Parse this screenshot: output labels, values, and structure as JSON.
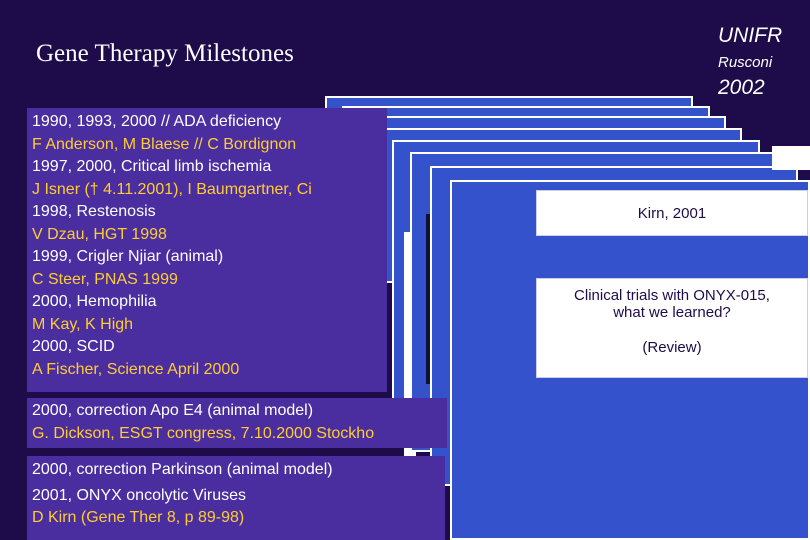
{
  "slide": {
    "title": "Gene Therapy Milestones",
    "institution": "UNIFR",
    "author": "Rusconi",
    "year": "2002"
  },
  "milestones": [
    {
      "line1": "1990, 1993, 2000 // ADA deficiency",
      "line2": "F Anderson, M Blaese // C Bordignon"
    },
    {
      "line1": "1997, 2000, Critical limb ischemia",
      "line2": "J Isner († 4.11.2001), I Baumgartner, Ci"
    },
    {
      "line1": "1998, Restenosis",
      "line2": "V Dzau, HGT 1998"
    },
    {
      "line1": "1999, Crigler Njiar (animal)",
      "line2": "C Steer, PNAS 1999"
    },
    {
      "line1": "2000, Hemophilia",
      "line2": "M Kay, K High"
    },
    {
      "line1": "2000, SCID",
      "line2": "A Fischer, Science April 2000"
    }
  ],
  "extra_panels": [
    {
      "line1": "2000, correction Apo E4 (animal model)",
      "line2": "G. Dickson, ESGT congress, 7.10.2000 Stockho"
    },
    {
      "line1": "2000, correction Parkinson (animal model)",
      "line2": "2001, ONYX oncolytic Viruses",
      "line3": "D Kirn (Gene Ther 8, p 89-98)"
    }
  ],
  "front_card": {
    "header": "Kirn, 2001",
    "body_line1": "Clinical trials with ONYX-015,",
    "body_line2": "what we learned?",
    "note": "(Review)"
  },
  "colors": {
    "background": "#1e0c4a",
    "panel": "#4a2ea0",
    "card": "#3352cc",
    "highlight_text": "#ffcc33",
    "text": "#ffffff"
  }
}
